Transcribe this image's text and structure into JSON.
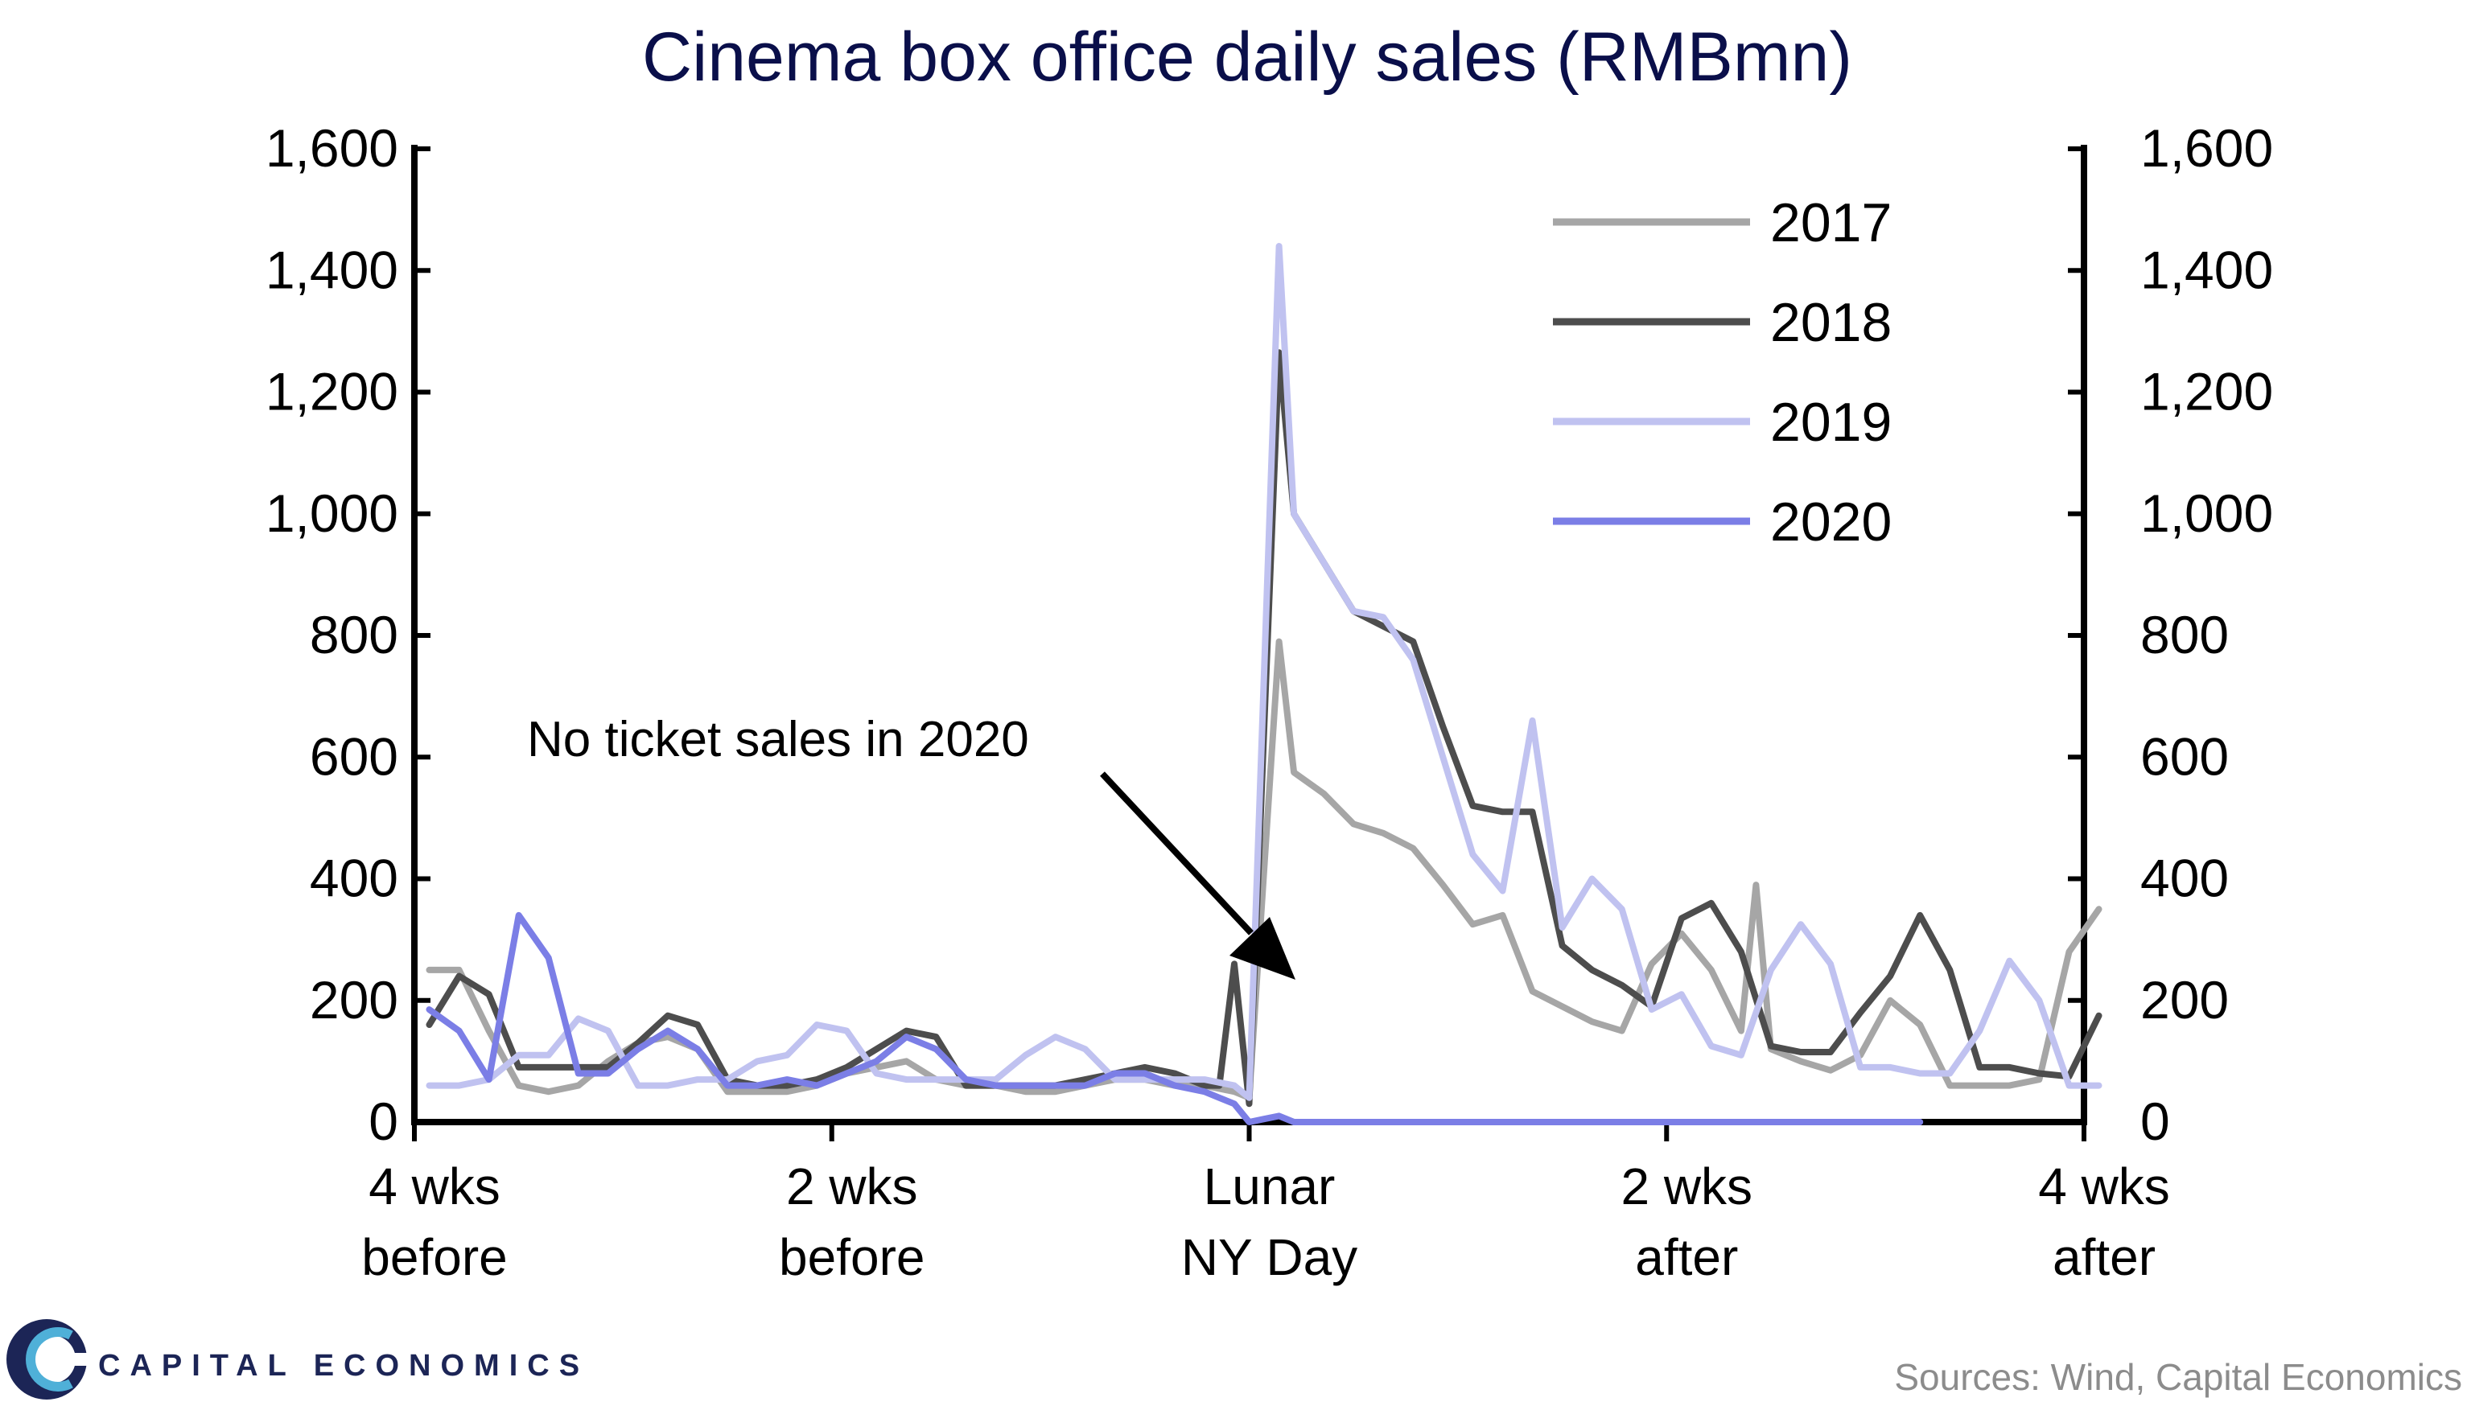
{
  "chart_data": {
    "type": "line",
    "title": "Cinema box office daily sales (RMBmn)",
    "xlabel": "",
    "ylabel": "",
    "ylim": [
      0,
      1600
    ],
    "y_ticks": [
      "0",
      "200",
      "400",
      "600",
      "800",
      "1,000",
      "1,200",
      "1,400",
      "1,600"
    ],
    "y_right_ticks": [
      "0",
      "200",
      "400",
      "600",
      "800",
      "1,000",
      "1,200",
      "1,400",
      "1,600"
    ],
    "x_ticks": [
      {
        "day": -28,
        "line1": "4 wks",
        "line2": "before"
      },
      {
        "day": -14,
        "line1": "2 wks",
        "line2": "before"
      },
      {
        "day": 0,
        "line1": "Lunar",
        "line2": "NY Day"
      },
      {
        "day": 14,
        "line1": "2 wks",
        "line2": "after"
      },
      {
        "day": 28,
        "line1": "4 wks",
        "line2": "after"
      }
    ],
    "xlim": [
      -28,
      28
    ],
    "grid": false,
    "legend_position": "top-right",
    "series": [
      {
        "name": "2017",
        "color": "#a6a6a6",
        "points": [
          [
            -27.5,
            250
          ],
          [
            -26.5,
            250
          ],
          [
            -25.5,
            150
          ],
          [
            -24.5,
            60
          ],
          [
            -23.5,
            50
          ],
          [
            -22.5,
            60
          ],
          [
            -21.5,
            100
          ],
          [
            -20.5,
            130
          ],
          [
            -19.5,
            140
          ],
          [
            -18.5,
            120
          ],
          [
            -17.5,
            50
          ],
          [
            -16.5,
            50
          ],
          [
            -15.5,
            50
          ],
          [
            -14.5,
            60
          ],
          [
            -13.5,
            80
          ],
          [
            -12.5,
            90
          ],
          [
            -11.5,
            100
          ],
          [
            -10.5,
            70
          ],
          [
            -9.5,
            60
          ],
          [
            -8.5,
            60
          ],
          [
            -7.5,
            50
          ],
          [
            -6.5,
            50
          ],
          [
            -5.5,
            60
          ],
          [
            -4.5,
            70
          ],
          [
            -3.5,
            70
          ],
          [
            -2.5,
            60
          ],
          [
            -1.5,
            60
          ],
          [
            -0.5,
            50
          ],
          [
            0,
            40
          ],
          [
            1,
            790
          ],
          [
            1.5,
            575
          ],
          [
            2.5,
            540
          ],
          [
            3.5,
            490
          ],
          [
            4.5,
            475
          ],
          [
            5.5,
            450
          ],
          [
            6.5,
            390
          ],
          [
            7.5,
            325
          ],
          [
            8.5,
            340
          ],
          [
            9.5,
            215
          ],
          [
            10.5,
            190
          ],
          [
            11.5,
            165
          ],
          [
            12.5,
            150
          ],
          [
            13.5,
            260
          ],
          [
            14.5,
            310
          ],
          [
            15.5,
            250
          ],
          [
            16.5,
            150
          ],
          [
            17,
            390
          ],
          [
            17.5,
            120
          ],
          [
            18.5,
            100
          ],
          [
            19.5,
            85
          ],
          [
            20.5,
            110
          ],
          [
            21.5,
            200
          ],
          [
            22.5,
            160
          ],
          [
            23.5,
            60
          ],
          [
            24.5,
            60
          ],
          [
            25.5,
            60
          ],
          [
            26.5,
            70
          ],
          [
            27.5,
            280
          ],
          [
            28.5,
            350
          ]
        ]
      },
      {
        "name": "2018",
        "color": "#4d4d4d",
        "points": [
          [
            -27.5,
            160
          ],
          [
            -26.5,
            240
          ],
          [
            -25.5,
            210
          ],
          [
            -24.5,
            90
          ],
          [
            -23.5,
            90
          ],
          [
            -22.5,
            90
          ],
          [
            -21.5,
            90
          ],
          [
            -20.5,
            130
          ],
          [
            -19.5,
            175
          ],
          [
            -18.5,
            160
          ],
          [
            -17.5,
            70
          ],
          [
            -16.5,
            60
          ],
          [
            -15.5,
            60
          ],
          [
            -14.5,
            70
          ],
          [
            -13.5,
            90
          ],
          [
            -12.5,
            120
          ],
          [
            -11.5,
            150
          ],
          [
            -10.5,
            140
          ],
          [
            -9.5,
            60
          ],
          [
            -8.5,
            60
          ],
          [
            -7.5,
            60
          ],
          [
            -6.5,
            60
          ],
          [
            -5.5,
            70
          ],
          [
            -4.5,
            80
          ],
          [
            -3.5,
            90
          ],
          [
            -2.5,
            80
          ],
          [
            -1.5,
            60
          ],
          [
            -1,
            60
          ],
          [
            -0.5,
            260
          ],
          [
            0,
            30
          ],
          [
            1,
            1265
          ],
          [
            1.5,
            1000
          ],
          [
            2.5,
            920
          ],
          [
            3.5,
            840
          ],
          [
            4.5,
            815
          ],
          [
            5.5,
            790
          ],
          [
            6.5,
            650
          ],
          [
            7.5,
            520
          ],
          [
            8.5,
            510
          ],
          [
            9.5,
            510
          ],
          [
            10.5,
            290
          ],
          [
            11.5,
            250
          ],
          [
            12.5,
            225
          ],
          [
            13.5,
            190
          ],
          [
            14.5,
            335
          ],
          [
            15.5,
            360
          ],
          [
            16.5,
            280
          ],
          [
            17.5,
            125
          ],
          [
            18.5,
            115
          ],
          [
            19.5,
            115
          ],
          [
            20.5,
            180
          ],
          [
            21.5,
            240
          ],
          [
            22.5,
            340
          ],
          [
            23.5,
            250
          ],
          [
            24.5,
            90
          ],
          [
            25.5,
            90
          ],
          [
            26.5,
            80
          ],
          [
            27.5,
            75
          ],
          [
            28.5,
            175
          ]
        ]
      },
      {
        "name": "2019",
        "color": "#c0c2f0",
        "points": [
          [
            -27.5,
            60
          ],
          [
            -26.5,
            60
          ],
          [
            -25.5,
            70
          ],
          [
            -24.5,
            110
          ],
          [
            -23.5,
            110
          ],
          [
            -22.5,
            170
          ],
          [
            -21.5,
            150
          ],
          [
            -20.5,
            60
          ],
          [
            -19.5,
            60
          ],
          [
            -18.5,
            70
          ],
          [
            -17.5,
            70
          ],
          [
            -16.5,
            100
          ],
          [
            -15.5,
            110
          ],
          [
            -14.5,
            160
          ],
          [
            -13.5,
            150
          ],
          [
            -12.5,
            80
          ],
          [
            -11.5,
            70
          ],
          [
            -10.5,
            70
          ],
          [
            -9.5,
            70
          ],
          [
            -8.5,
            70
          ],
          [
            -7.5,
            110
          ],
          [
            -6.5,
            140
          ],
          [
            -5.5,
            120
          ],
          [
            -4.5,
            70
          ],
          [
            -3.5,
            70
          ],
          [
            -2.5,
            70
          ],
          [
            -1.5,
            70
          ],
          [
            -0.5,
            60
          ],
          [
            0,
            40
          ],
          [
            1,
            1440
          ],
          [
            1.5,
            1000
          ],
          [
            2.5,
            920
          ],
          [
            3.5,
            840
          ],
          [
            4.5,
            830
          ],
          [
            5.5,
            760
          ],
          [
            6.5,
            600
          ],
          [
            7.5,
            440
          ],
          [
            8.5,
            380
          ],
          [
            9.5,
            660
          ],
          [
            10.5,
            320
          ],
          [
            11.5,
            400
          ],
          [
            12.5,
            350
          ],
          [
            13.5,
            185
          ],
          [
            14.5,
            210
          ],
          [
            15.5,
            125
          ],
          [
            16.5,
            110
          ],
          [
            17.5,
            250
          ],
          [
            18.5,
            325
          ],
          [
            19.5,
            260
          ],
          [
            20.5,
            90
          ],
          [
            21.5,
            90
          ],
          [
            22.5,
            80
          ],
          [
            23.5,
            80
          ],
          [
            24.5,
            150
          ],
          [
            25.5,
            265
          ],
          [
            26.5,
            200
          ],
          [
            27.5,
            60
          ],
          [
            28.5,
            60
          ]
        ]
      },
      {
        "name": "2020",
        "color": "#7b7ee6",
        "points": [
          [
            -27.5,
            185
          ],
          [
            -26.5,
            150
          ],
          [
            -25.5,
            70
          ],
          [
            -24.5,
            340
          ],
          [
            -23.5,
            270
          ],
          [
            -22.5,
            80
          ],
          [
            -21.5,
            80
          ],
          [
            -20.5,
            120
          ],
          [
            -19.5,
            150
          ],
          [
            -18.5,
            120
          ],
          [
            -17.5,
            60
          ],
          [
            -16.5,
            60
          ],
          [
            -15.5,
            70
          ],
          [
            -14.5,
            60
          ],
          [
            -13.5,
            80
          ],
          [
            -12.5,
            100
          ],
          [
            -11.5,
            140
          ],
          [
            -10.5,
            120
          ],
          [
            -9.5,
            70
          ],
          [
            -8.5,
            60
          ],
          [
            -7.5,
            60
          ],
          [
            -6.5,
            60
          ],
          [
            -5.5,
            60
          ],
          [
            -4.5,
            80
          ],
          [
            -3.5,
            80
          ],
          [
            -2.5,
            60
          ],
          [
            -1.5,
            50
          ],
          [
            -1,
            40
          ],
          [
            -0.5,
            30
          ],
          [
            0,
            0
          ],
          [
            0.5,
            5
          ],
          [
            1,
            10
          ],
          [
            1.5,
            0
          ],
          [
            2,
            0
          ],
          [
            22.5,
            0
          ]
        ]
      }
    ],
    "annotations": [
      {
        "text": "No ticket sales in 2020"
      }
    ]
  },
  "footer": {
    "logo_text": "CAPITAL ECONOMICS",
    "source": "Sources: Wind, Capital Economics"
  },
  "logo_colors": {
    "dark": "#1c2556",
    "light": "#4fb0d8"
  }
}
